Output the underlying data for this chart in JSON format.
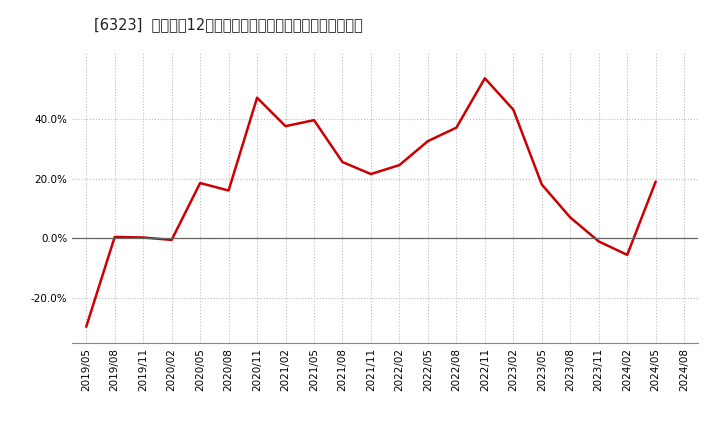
{
  "title": "[6323]  売上高の12か月移動合計の対前年同期増減率の推移",
  "line_color": "#cc0000",
  "background_color": "#ffffff",
  "plot_background": "#ffffff",
  "grid_color": "#bbbbbb",
  "zero_line_color": "#666666",
  "dates": [
    "2019/05",
    "2019/08",
    "2019/11",
    "2020/02",
    "2020/05",
    "2020/08",
    "2020/11",
    "2021/02",
    "2021/05",
    "2021/08",
    "2021/11",
    "2022/02",
    "2022/05",
    "2022/08",
    "2022/11",
    "2023/02",
    "2023/05",
    "2023/08",
    "2023/11",
    "2024/02",
    "2024/05",
    "2024/08"
  ],
  "values": [
    -0.295,
    0.005,
    0.003,
    -0.005,
    0.185,
    0.16,
    0.47,
    0.375,
    0.395,
    0.255,
    0.215,
    0.245,
    0.325,
    0.37,
    0.535,
    0.43,
    0.18,
    0.07,
    -0.01,
    -0.055,
    0.19,
    null
  ],
  "ylim": [
    -0.35,
    0.62
  ],
  "yticks": [
    -0.2,
    0.0,
    0.2,
    0.4
  ],
  "ytick_labels": [
    "-20.0%",
    "0.0%",
    "20.0%",
    "40.0%"
  ],
  "figsize": [
    7.2,
    4.4
  ],
  "dpi": 100,
  "title_fontsize": 10.5,
  "tick_fontsize": 7.5
}
